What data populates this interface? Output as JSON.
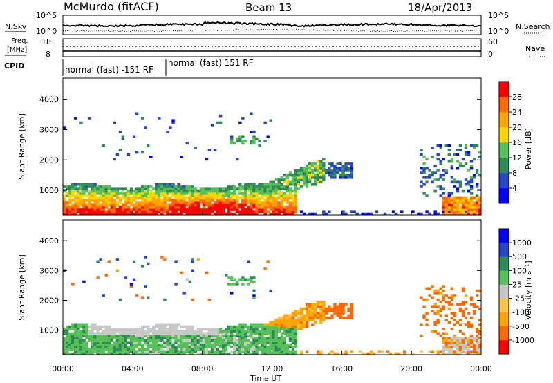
{
  "header": {
    "station": "McMurdo (fitACF)",
    "beam": "Beam 13",
    "date": "18/Apr/2013"
  },
  "noise_panel": {
    "left_label": "N.Sky",
    "right_label": "N.Search",
    "left_ticks": [
      "10^5",
      "10^0"
    ],
    "right_ticks": [
      "10^5",
      "10^0"
    ]
  },
  "freq_panel": {
    "left_label_1": "Freq.",
    "left_label_2": "[MHz]",
    "right_label": "Nave",
    "left_ticks": [
      "18",
      "8"
    ],
    "right_ticks": [
      "60",
      "0"
    ]
  },
  "cpid_panel": {
    "label": "CPID",
    "segments": [
      "normal (fast) -151 RF",
      "normal (fast) 151 RF"
    ]
  },
  "colors": {
    "power": [
      "#0000ff",
      "#2a44c8",
      "#2e8b57",
      "#58c058",
      "#ffd700",
      "#ffa500",
      "#ff6a00",
      "#ff0000"
    ],
    "velocity": [
      "#ff0000",
      "#ff6a00",
      "#ffa500",
      "#ffc44a",
      "#c8c8c8",
      "#58c058",
      "#2e8b57",
      "#2a44c8",
      "#0000ff"
    ]
  },
  "chart_data": [
    {
      "type": "heatmap",
      "name": "power",
      "ylabel": "Slant Range [km]",
      "xlabel": "Time UT",
      "xlim": [
        0,
        24
      ],
      "ylim": [
        180,
        4700
      ],
      "y_ticks": [
        "1000",
        "2000",
        "3000",
        "4000"
      ],
      "x_ticks": [
        "00:00",
        "04:00",
        "08:00",
        "12:00",
        "16:00",
        "20:00",
        "00:00"
      ],
      "colorbar": {
        "label": "Power [dB]",
        "ticks": [
          "4",
          "8",
          "12",
          "16",
          "20",
          "24",
          "28"
        ]
      }
    },
    {
      "type": "heatmap",
      "name": "velocity",
      "ylabel": "Slant Range [km]",
      "xlabel": "Time UT",
      "xlim": [
        0,
        24
      ],
      "ylim": [
        180,
        4700
      ],
      "y_ticks": [
        "1000",
        "2000",
        "3000",
        "4000"
      ],
      "x_ticks": [
        "00:00",
        "04:00",
        "08:00",
        "12:00",
        "16:00",
        "20:00",
        "00:00"
      ],
      "colorbar": {
        "label": "Velocity [m s⁻¹]",
        "ticks": [
          "1000",
          "500",
          "100",
          "25",
          "-25",
          "-100",
          "-500",
          "-1000"
        ]
      }
    }
  ]
}
